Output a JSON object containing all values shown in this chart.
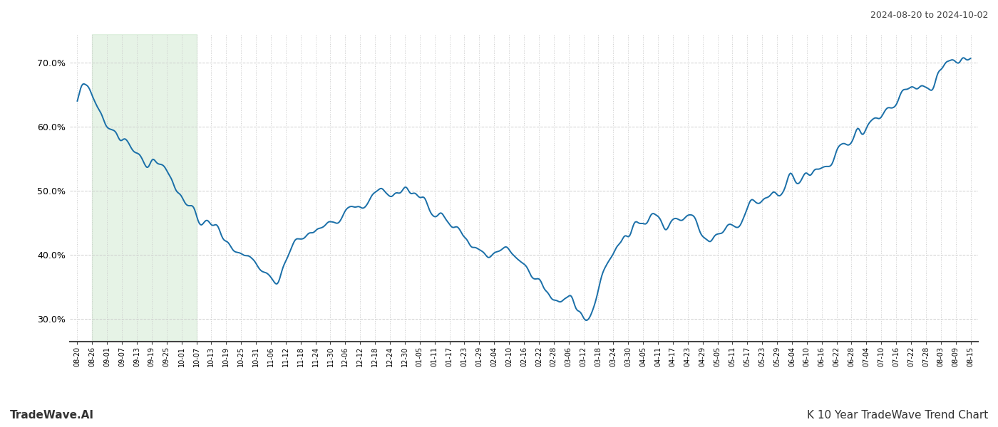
{
  "title_top_right": "2024-08-20 to 2024-10-02",
  "title_bottom_right": "K 10 Year TradeWave Trend Chart",
  "title_bottom_left": "TradeWave.AI",
  "line_color": "#1a6fa8",
  "line_width": 1.4,
  "shade_color": "#c8e6c9",
  "shade_alpha": 0.45,
  "background_color": "#ffffff",
  "grid_color": "#cccccc",
  "ylim": [
    0.265,
    0.745
  ],
  "yticks": [
    0.3,
    0.4,
    0.5,
    0.6,
    0.7
  ],
  "shade_start_label": "08-26",
  "shade_end_label": "10-07",
  "x_labels": [
    "08-20",
    "08-26",
    "09-01",
    "09-07",
    "09-13",
    "09-19",
    "09-25",
    "10-01",
    "10-07",
    "10-13",
    "10-19",
    "10-25",
    "10-31",
    "11-06",
    "11-12",
    "11-18",
    "11-24",
    "11-30",
    "12-06",
    "12-12",
    "12-18",
    "12-24",
    "12-30",
    "01-05",
    "01-11",
    "01-17",
    "01-23",
    "01-29",
    "02-04",
    "02-10",
    "02-16",
    "02-22",
    "02-28",
    "03-06",
    "03-12",
    "03-18",
    "03-24",
    "03-30",
    "04-05",
    "04-11",
    "04-17",
    "04-23",
    "04-29",
    "05-05",
    "05-11",
    "05-17",
    "05-23",
    "05-29",
    "06-04",
    "06-10",
    "06-16",
    "06-22",
    "06-28",
    "07-04",
    "07-10",
    "07-16",
    "07-22",
    "07-28",
    "08-03",
    "08-09",
    "08-15"
  ],
  "waypoints": [
    [
      0,
      0.641
    ],
    [
      2,
      0.625
    ],
    [
      3,
      0.59
    ],
    [
      4,
      0.578
    ],
    [
      5,
      0.56
    ],
    [
      6,
      0.548
    ],
    [
      7,
      0.534
    ],
    [
      8,
      0.518
    ],
    [
      9,
      0.478
    ],
    [
      10,
      0.462
    ],
    [
      11,
      0.452
    ],
    [
      12,
      0.437
    ],
    [
      13,
      0.42
    ],
    [
      14,
      0.4
    ],
    [
      15,
      0.385
    ],
    [
      16,
      0.372
    ],
    [
      17,
      0.365
    ],
    [
      18,
      0.405
    ],
    [
      19,
      0.422
    ],
    [
      20,
      0.435
    ],
    [
      21,
      0.445
    ],
    [
      22,
      0.45
    ],
    [
      23,
      0.468
    ],
    [
      24,
      0.48
    ],
    [
      25,
      0.492
    ],
    [
      26,
      0.5
    ],
    [
      27,
      0.51
    ],
    [
      28,
      0.508
    ],
    [
      29,
      0.492
    ],
    [
      30,
      0.472
    ],
    [
      31,
      0.46
    ],
    [
      32,
      0.445
    ],
    [
      33,
      0.43
    ],
    [
      34,
      0.415
    ],
    [
      35,
      0.402
    ],
    [
      36,
      0.408
    ],
    [
      37,
      0.395
    ],
    [
      38,
      0.385
    ],
    [
      39,
      0.36
    ],
    [
      40,
      0.342
    ],
    [
      41,
      0.332
    ],
    [
      42,
      0.328
    ],
    [
      43,
      0.292
    ],
    [
      44,
      0.325
    ],
    [
      45,
      0.385
    ],
    [
      46,
      0.408
    ],
    [
      47,
      0.438
    ],
    [
      48,
      0.455
    ],
    [
      49,
      0.46
    ],
    [
      50,
      0.448
    ],
    [
      51,
      0.45
    ],
    [
      52,
      0.452
    ],
    [
      53,
      0.442
    ],
    [
      54,
      0.422
    ],
    [
      55,
      0.438
    ],
    [
      56,
      0.445
    ],
    [
      57,
      0.47
    ],
    [
      58,
      0.48
    ],
    [
      59,
      0.49
    ],
    [
      60,
      0.5
    ],
    [
      61,
      0.512
    ],
    [
      62,
      0.525
    ],
    [
      63,
      0.538
    ],
    [
      64,
      0.55
    ],
    [
      65,
      0.562
    ],
    [
      66,
      0.578
    ],
    [
      67,
      0.595
    ],
    [
      68,
      0.618
    ],
    [
      69,
      0.638
    ],
    [
      70,
      0.648
    ],
    [
      71,
      0.66
    ],
    [
      72,
      0.668
    ],
    [
      73,
      0.675
    ],
    [
      74,
      0.692
    ],
    [
      75,
      0.708
    ],
    [
      76,
      0.718
    ]
  ],
  "noise_seed": 17,
  "noise_std": 0.018,
  "noise_sigma": 2.5,
  "n_points": 800
}
